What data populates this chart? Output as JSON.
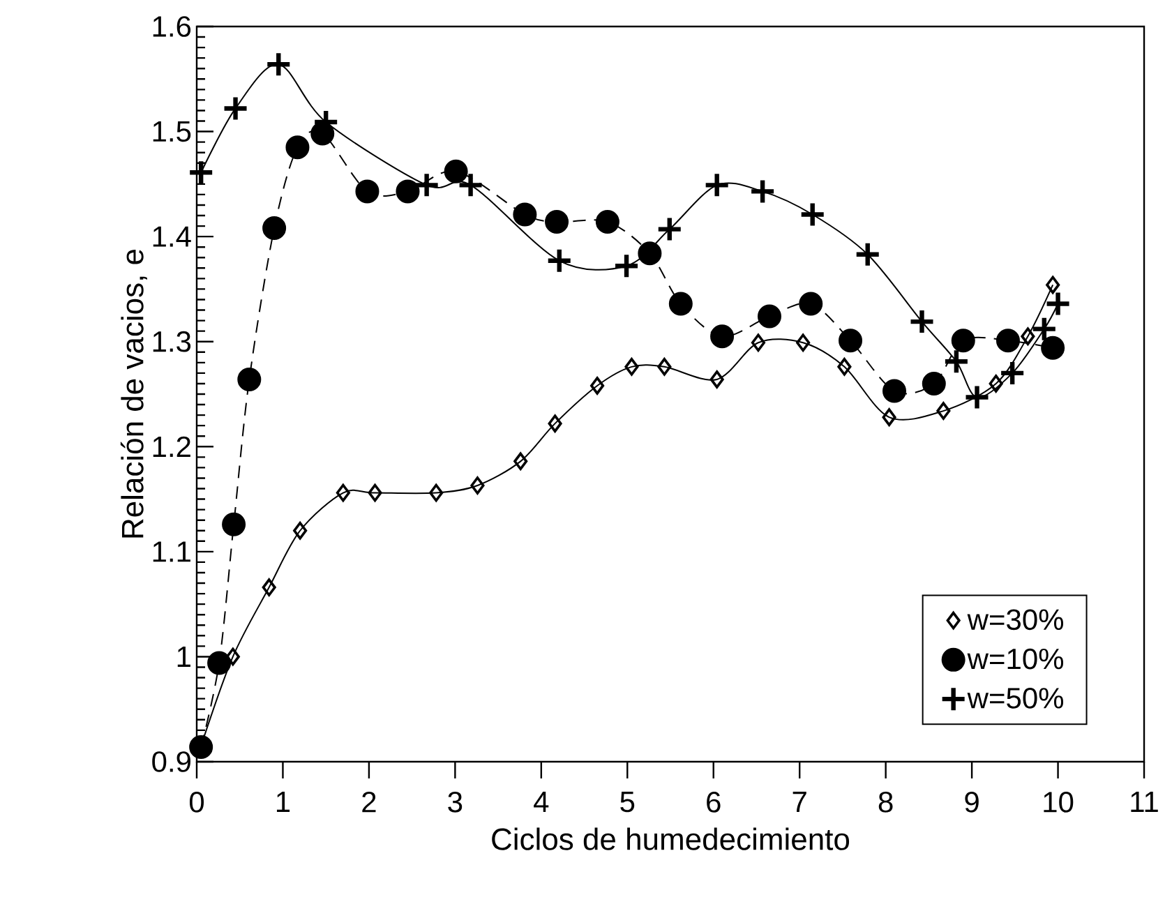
{
  "chart_data": {
    "type": "line",
    "xlabel": "Ciclos de humedecimiento",
    "ylabel": "Relación de vacios, e",
    "xlim": [
      0,
      11
    ],
    "xticks": [
      0,
      1,
      2,
      3,
      4,
      5,
      6,
      7,
      8,
      9,
      10,
      11
    ],
    "ylim": [
      0.9,
      1.6
    ],
    "yticks": [
      0.9,
      1,
      1.1,
      1.2,
      1.3,
      1.4,
      1.5,
      1.6
    ],
    "legend": "bottom right",
    "grid": false,
    "series": [
      {
        "name": "w=30%",
        "color": "#000000",
        "marker": "diamond",
        "line_style": "solid",
        "x": [
          0.05,
          0.42,
          0.84,
          1.2,
          1.7,
          2.07,
          2.78,
          3.26,
          3.76,
          4.16,
          4.65,
          5.05,
          5.43,
          6.04,
          6.52,
          7.04,
          7.52,
          8.04,
          8.67,
          9.28,
          9.65,
          9.94
        ],
        "values": [
          0.915,
          1.0,
          1.066,
          1.12,
          1.156,
          1.156,
          1.156,
          1.163,
          1.186,
          1.222,
          1.258,
          1.276,
          1.276,
          1.264,
          1.299,
          1.299,
          1.276,
          1.228,
          1.234,
          1.26,
          1.305,
          1.354
        ]
      },
      {
        "name": "w=10%",
        "color": "#000000",
        "marker": "circle",
        "line_style": "dashed",
        "x": [
          0.05,
          0.26,
          0.43,
          0.61,
          0.9,
          1.17,
          1.46,
          1.98,
          2.45,
          3.01,
          3.81,
          4.18,
          4.77,
          5.26,
          5.62,
          6.1,
          6.65,
          7.13,
          7.59,
          8.1,
          8.56,
          8.9,
          9.42,
          9.94
        ],
        "values": [
          0.914,
          0.994,
          1.126,
          1.264,
          1.408,
          1.485,
          1.498,
          1.443,
          1.443,
          1.462,
          1.421,
          1.414,
          1.414,
          1.384,
          1.336,
          1.305,
          1.324,
          1.336,
          1.301,
          1.253,
          1.26,
          1.301,
          1.301,
          1.294
        ]
      },
      {
        "name": "w=50%",
        "color": "#000000",
        "marker": "cross",
        "line_style": "solid",
        "x": [
          0.05,
          0.45,
          0.95,
          1.5,
          2.67,
          3.18,
          4.21,
          4.99,
          5.49,
          6.04,
          6.57,
          7.15,
          7.79,
          8.42,
          8.82,
          9.06,
          9.47,
          9.84,
          10.0
        ],
        "values": [
          1.461,
          1.522,
          1.564,
          1.509,
          1.449,
          1.449,
          1.377,
          1.372,
          1.407,
          1.449,
          1.443,
          1.421,
          1.383,
          1.319,
          1.281,
          1.247,
          1.27,
          1.312,
          1.336
        ]
      }
    ]
  }
}
